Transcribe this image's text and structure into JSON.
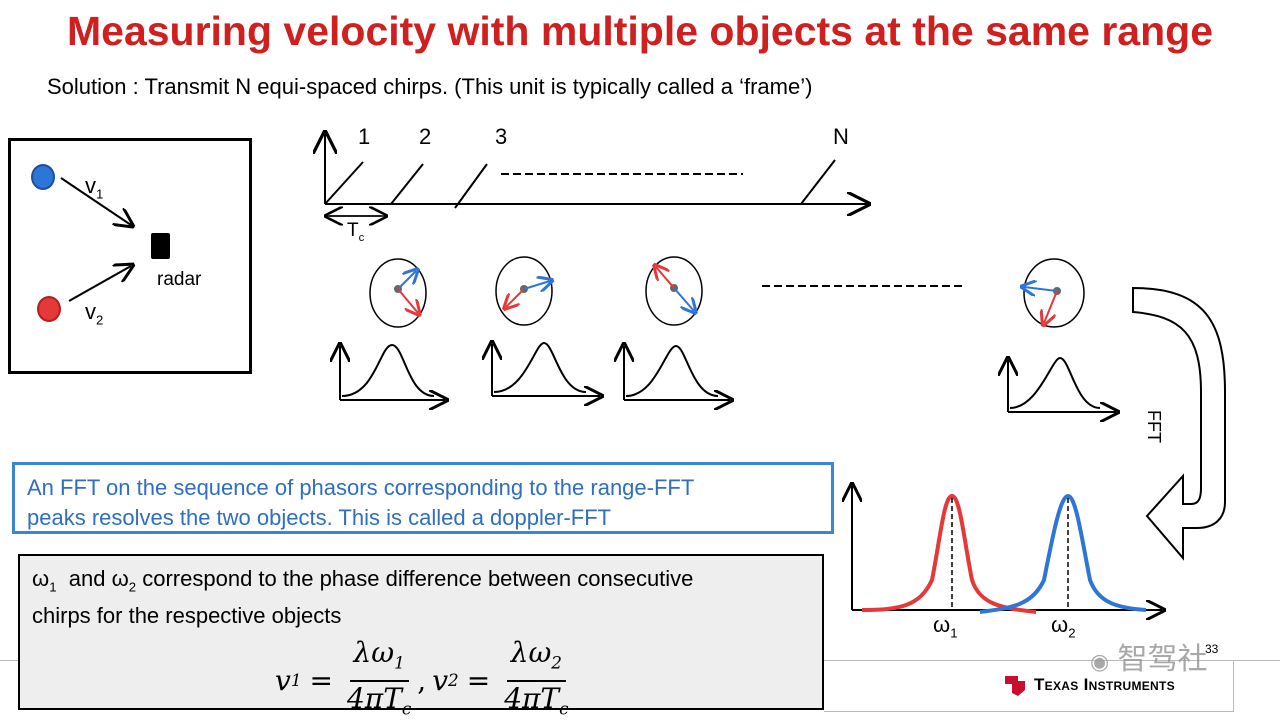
{
  "title": "Measuring velocity with multiple objects at the same range",
  "subtitle": "Solution : Transmit N equi-spaced chirps. (This unit is typically called a ‘frame’)",
  "scene": {
    "v1_label": "v",
    "v1_sub": "1",
    "v2_label": "v",
    "v2_sub": "2",
    "radar_label": "radar"
  },
  "chirps": {
    "labels": [
      "1",
      "2",
      "3",
      "N"
    ],
    "period_label": "T",
    "period_sub": "c"
  },
  "fft_arrow_label": "FFT",
  "fft_box": {
    "line1": "An FFT on the sequence of phasors corresponding to the range-FFT",
    "line2": "peaks resolves the two objects. This is called a doppler-FFT"
  },
  "omega_box": {
    "w1_symbol": "ω",
    "w1_sub": "1",
    "text_a": "and ω",
    "text_a_sub": "2",
    "text_b": "correspond to the phase difference between consecutive",
    "line2": "chirps for the respective objects"
  },
  "formula": {
    "v1_lhs": "v",
    "v1_sub": "1",
    "eq": "=",
    "num1": "λω",
    "num1_sub": "1",
    "den": "4πT",
    "den_sub": "c",
    "comma": ",",
    "v2_lhs": "v",
    "v2_sub": "2",
    "num2": "λω",
    "num2_sub": "2"
  },
  "doppler": {
    "w1_label": "ω",
    "w1_sub": "1",
    "w2_label": "ω",
    "w2_sub": "2"
  },
  "footer": {
    "page_number": "33",
    "brand": "Texas Instruments",
    "watermark": "智驾社"
  },
  "colors": {
    "title_red": "#d01f1f",
    "blue": "#2e75d8",
    "red": "#e53838",
    "box_blue": "#3a86d3"
  }
}
